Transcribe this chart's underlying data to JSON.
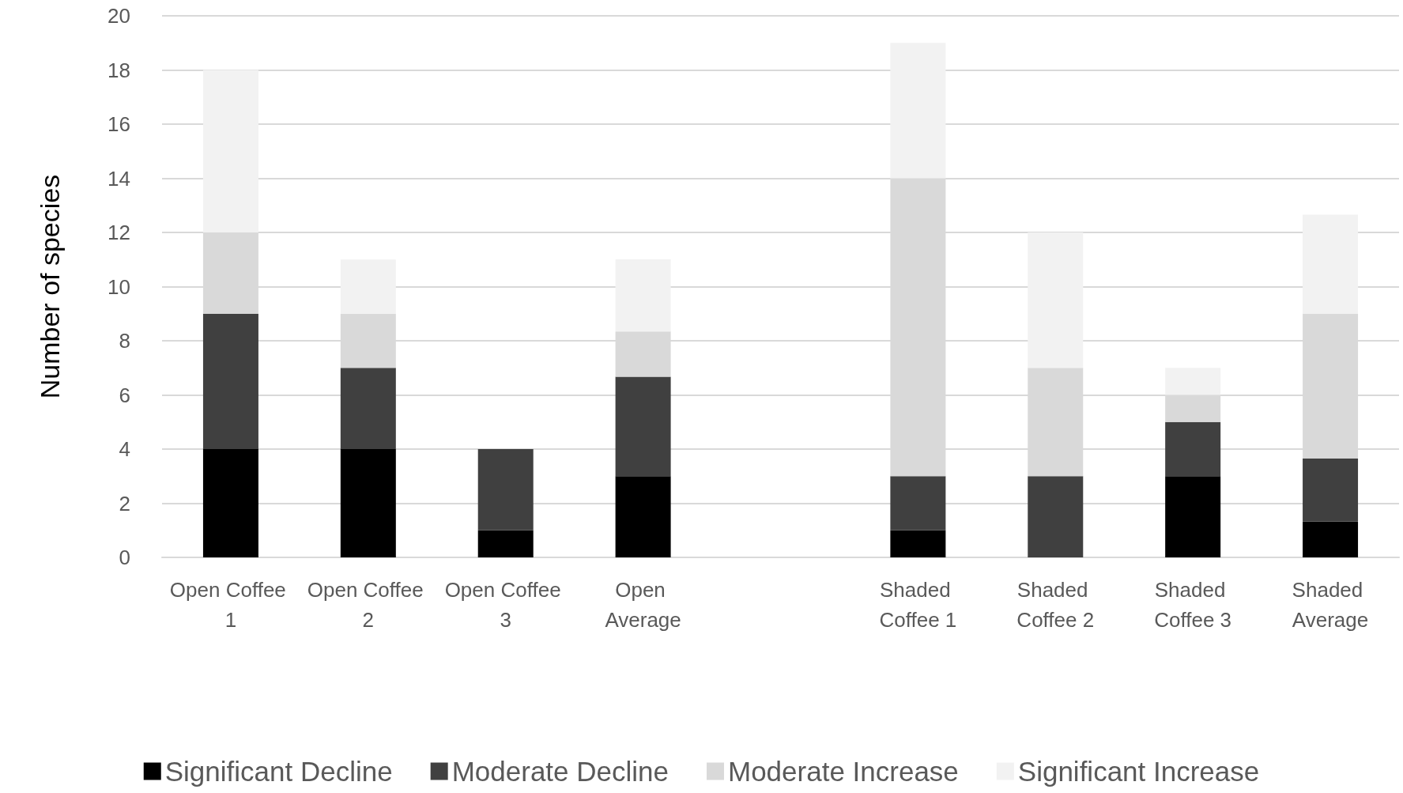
{
  "chart_data": {
    "type": "bar",
    "stacked": true,
    "ylabel": "Number of species",
    "categories": [
      "Open Coffee 1",
      "Open Coffee 2",
      "Open Coffee 3",
      "Open Average",
      null,
      "Shaded Coffee 1",
      "Shaded Coffee 2",
      "Shaded Coffee 3",
      "Shaded Average"
    ],
    "series": [
      {
        "name": "Significant Decline",
        "color": "#000000",
        "values": [
          4,
          4,
          1,
          3,
          null,
          1,
          0,
          3,
          1.33
        ]
      },
      {
        "name": "Moderate Decline",
        "color": "#404040",
        "values": [
          5,
          3,
          3,
          3.67,
          null,
          2,
          3,
          2,
          2.33
        ]
      },
      {
        "name": "Moderate Increase",
        "color": "#d9d9d9",
        "values": [
          3,
          2,
          0,
          1.67,
          null,
          11,
          4,
          1,
          5.33
        ]
      },
      {
        "name": "Significant Increase",
        "color": "#f2f2f2",
        "values": [
          6,
          2,
          0,
          2.67,
          null,
          5,
          5,
          1,
          3.67
        ]
      }
    ],
    "ylim": [
      0,
      20
    ],
    "yticks": [
      0,
      2,
      4,
      6,
      8,
      10,
      12,
      14,
      16,
      18,
      20
    ],
    "grid": "y",
    "legend": "bottom"
  }
}
